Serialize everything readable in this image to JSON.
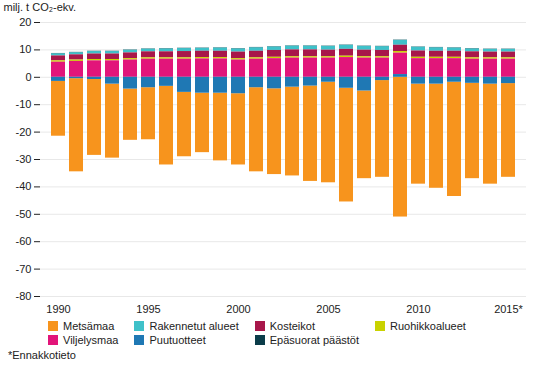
{
  "chart_data": {
    "type": "bar",
    "stacked": true,
    "ylabel": "milj. t CO₂-ekv.",
    "caption": "*Ennakkotieto",
    "legend": "bottom",
    "grid": true,
    "categories": [
      "1990",
      null,
      null,
      null,
      null,
      "1995",
      null,
      null,
      null,
      null,
      "2000",
      null,
      null,
      null,
      null,
      "2005",
      null,
      null,
      null,
      null,
      "2010",
      null,
      null,
      null,
      null,
      "2015*"
    ],
    "series": [
      {
        "name": "Metsämaa",
        "color": "#f7941d",
        "values": [
          -20.0,
          -34.0,
          -27.7,
          -27.0,
          -18.7,
          -19.0,
          -28.7,
          -23.5,
          -21.7,
          -24.7,
          -26.0,
          -30.7,
          -31.3,
          -32.4,
          -34.8,
          -36.7,
          -41.5,
          -32.0,
          -35.3,
          -51.0,
          -36.5,
          -38.0,
          -41.7,
          -34.8,
          -36.5,
          -34.2
        ]
      },
      {
        "name": "Rakennetut alueet",
        "color": "#3fc1c9",
        "values": [
          0.8,
          0.8,
          0.9,
          0.9,
          1.0,
          1.0,
          1.1,
          1.1,
          1.1,
          1.2,
          1.2,
          1.3,
          1.3,
          1.4,
          1.4,
          1.4,
          1.5,
          1.4,
          1.4,
          1.8,
          1.4,
          1.3,
          1.2,
          1.1,
          1.0,
          1.0
        ]
      },
      {
        "name": "Kosteikot",
        "color": "#a8174a",
        "values": [
          1.8,
          1.9,
          2.0,
          2.0,
          2.1,
          2.2,
          2.2,
          2.3,
          2.3,
          2.3,
          2.4,
          2.4,
          2.5,
          2.5,
          2.5,
          2.4,
          2.5,
          2.4,
          2.3,
          2.3,
          2.3,
          2.2,
          2.2,
          2.2,
          2.1,
          2.1
        ]
      },
      {
        "name": "Ruohikkoalueet",
        "color": "#c9d200",
        "values": [
          0.5,
          0.5,
          0.5,
          0.5,
          0.5,
          0.5,
          0.5,
          0.5,
          0.5,
          0.5,
          0.5,
          0.5,
          0.5,
          0.5,
          0.5,
          0.5,
          0.5,
          0.5,
          0.5,
          0.6,
          0.5,
          0.5,
          0.5,
          0.5,
          0.5,
          0.5
        ]
      },
      {
        "name": "Viljelysmaa",
        "color": "#e2157a",
        "values": [
          5.5,
          5.8,
          6.0,
          6.0,
          6.3,
          6.6,
          6.6,
          6.6,
          6.7,
          6.7,
          6.3,
          6.6,
          6.8,
          7.0,
          7.0,
          7.0,
          7.2,
          7.0,
          7.0,
          7.8,
          6.8,
          6.8,
          6.8,
          6.6,
          6.6,
          6.6
        ]
      },
      {
        "name": "Puutuotteet",
        "color": "#1f78b4",
        "values": [
          -1.5,
          -0.5,
          -0.8,
          -2.5,
          -4.3,
          -3.8,
          -3.3,
          -5.5,
          -5.8,
          -5.8,
          -6.0,
          -3.8,
          -4.2,
          -3.6,
          -3.2,
          -1.8,
          -4.0,
          -5.0,
          -1.2,
          1.0,
          -2.5,
          -2.5,
          -1.8,
          -2.2,
          -2.5,
          -2.3
        ]
      },
      {
        "name": "Epäsuorat päästöt",
        "color": "#0b3c49",
        "values": [
          0.1,
          0.1,
          0.1,
          0.1,
          0.1,
          0.1,
          0.1,
          0.1,
          0.1,
          0.1,
          0.1,
          0.1,
          0.1,
          0.1,
          0.1,
          0.1,
          0.1,
          0.1,
          0.1,
          0.1,
          0.1,
          0.1,
          0.1,
          0.1,
          0.1,
          0.1
        ]
      }
    ],
    "ylim": [
      -80,
      20
    ],
    "yticks": [
      -80,
      -70,
      -60,
      -50,
      -40,
      -30,
      -20,
      -10,
      0,
      10,
      20
    ]
  }
}
